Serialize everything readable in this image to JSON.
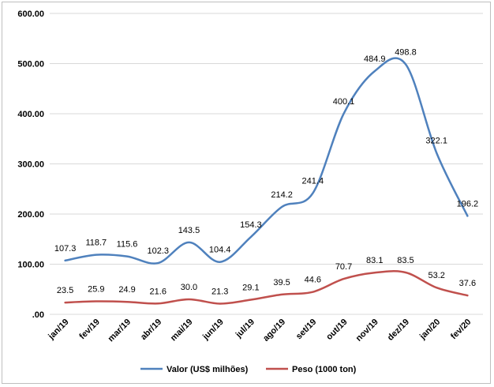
{
  "chart_data": {
    "type": "line",
    "categories": [
      "jan/19",
      "fev/19",
      "mar/19",
      "abr/19",
      "mai/19",
      "jun/19",
      "jul/19",
      "ago/19",
      "set/19",
      "out/19",
      "nov/19",
      "dez/19",
      "jan/20",
      "fev/20"
    ],
    "series": [
      {
        "name": "Valor (US$ milhões)",
        "color": "#4f81bd",
        "values": [
          107.3,
          118.7,
          115.6,
          102.3,
          143.5,
          104.4,
          154.3,
          214.2,
          241.4,
          400.1,
          484.9,
          498.8,
          322.1,
          196.2
        ],
        "labels": [
          "107.3",
          "118.7",
          "115.6",
          "102.3",
          "143.5",
          "104.4",
          "154.3",
          "214.2",
          "241.4",
          "400.1",
          "484.9",
          "498.8",
          "322.1",
          "196.2"
        ]
      },
      {
        "name": "Peso (1000 ton)",
        "color": "#c0504d",
        "values": [
          23.5,
          25.9,
          24.9,
          21.6,
          30.0,
          21.3,
          29.1,
          39.5,
          44.6,
          70.7,
          83.1,
          83.5,
          53.2,
          37.6
        ],
        "labels": [
          "23.5",
          "25.9",
          "24.9",
          "21.6",
          "30.0",
          "21.3",
          "29.1",
          "39.5",
          "44.6",
          "70.7",
          "83.1",
          "83.5",
          "53.2",
          "37.6"
        ]
      }
    ],
    "yticks": [
      0,
      100,
      200,
      300,
      400,
      500,
      600
    ],
    "ytick_labels": [
      ".00",
      "100.00",
      "200.00",
      "300.00",
      "400.00",
      "500.00",
      "600.00"
    ],
    "ylim": [
      0,
      600
    ],
    "grid": "horizontal",
    "legend": "bottom",
    "smooth": true,
    "title": "",
    "xlabel": "",
    "ylabel": ""
  }
}
